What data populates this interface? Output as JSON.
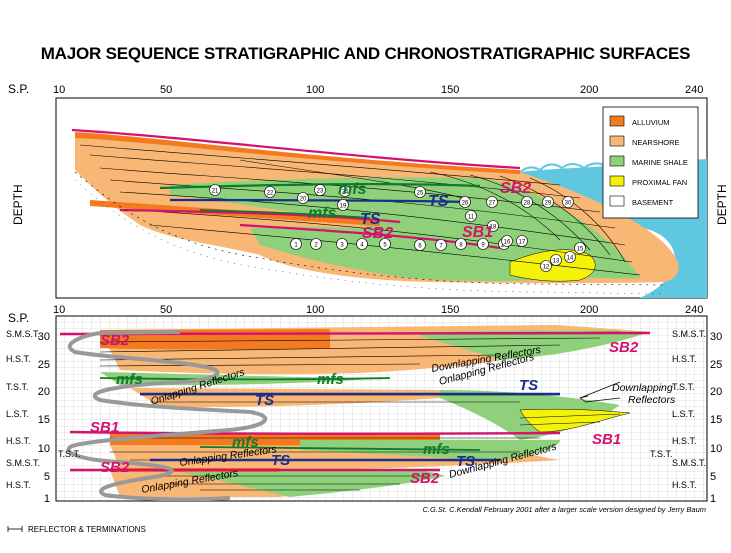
{
  "title": "MAJOR SEQUENCE STRATIGRAPHIC AND CHRONOSTRATIGRAPHIC SURFACES",
  "top_axis": {
    "label": "S.P.",
    "ticks": [
      "10",
      "50",
      "100",
      "150",
      "200",
      "240"
    ]
  },
  "bottom_axis": {
    "label": "S.P.",
    "ticks": [
      "10",
      "50",
      "100",
      "150",
      "200",
      "240"
    ]
  },
  "depth_label": "DEPTH",
  "legend": [
    {
      "label": "ALLUVIUM",
      "color": "#f47a1f"
    },
    {
      "label": "NEARSHORE",
      "color": "#f8b774"
    },
    {
      "label": "MARINE SHALE",
      "color": "#8fd07a"
    },
    {
      "label": "PROXIMAL FAN",
      "color": "#f5f20a"
    },
    {
      "label": "BASEMENT",
      "color": "#ffffff"
    }
  ],
  "colors": {
    "water": "#5fc8e0",
    "sequence_boundary": "#d4126e",
    "ts": "#1a2f8a",
    "mfs": "#0f7a2a"
  },
  "top_labels": {
    "mfs1": "mfs",
    "mfs2": "mfs",
    "ts1": "TS",
    "ts2": "TS",
    "sb2": "SB2",
    "sb2b": "SB2",
    "sb1": "SB1"
  },
  "top_numbers": [
    "1",
    "2",
    "3",
    "4",
    "5",
    "6",
    "7",
    "8",
    "9",
    "10",
    "11",
    "12",
    "13",
    "14",
    "15",
    "16",
    "17",
    "18",
    "19",
    "20",
    "21",
    "22",
    "23",
    "24",
    "25",
    "26",
    "27",
    "28",
    "29",
    "30"
  ],
  "left_scale": [
    "30",
    "25",
    "20",
    "15",
    "10",
    "5",
    "1"
  ],
  "right_scale": [
    "30",
    "25",
    "20",
    "15",
    "10",
    "5",
    "1"
  ],
  "systems_tracts_left": [
    "S.M.S.T.",
    "H.S.T.",
    "T.S.T.",
    "L.S.T.",
    "H.S.T.",
    "T.S.T.",
    "S.M.S.T.",
    "H.S.T."
  ],
  "systems_tracts_right": [
    "S.M.S.T.",
    "H.S.T.",
    "T.S.T.",
    "L.S.T.",
    "H.S.T.",
    "T.S.T.",
    "S.M.S.T.",
    "H.S.T."
  ],
  "bottom_labels": {
    "sb2_left_top": "SB2",
    "sb2_right_top": "SB2",
    "mfs_a": "mfs",
    "mfs_b": "mfs",
    "ts_a": "TS",
    "ts_b": "TS",
    "sb1_left": "SB1",
    "sb1_right": "SB1",
    "mfs_c": "mfs",
    "mfs_d": "mfs",
    "ts_c": "TS",
    "ts_d": "TS",
    "sb2_left_bot": "SB2",
    "sb2_right_bot": "SB2",
    "onlap1": "Onlapping Reflectors",
    "onlap2": "Onlapping Reflectors",
    "onlap3": "Onlapping Reflectors",
    "onlap4": "Onlapping Reflectors",
    "down1": "Downlapping Reflectors",
    "down2": "Downlapping",
    "down2b": "Reflectors",
    "down3": "Downlapping Reflectors"
  },
  "credit": "C.G.St. C.Kendall February 2001 after a larger scale version designed by Jerry Baum",
  "footer_legend": "REFLECTOR & TERMINATIONS"
}
